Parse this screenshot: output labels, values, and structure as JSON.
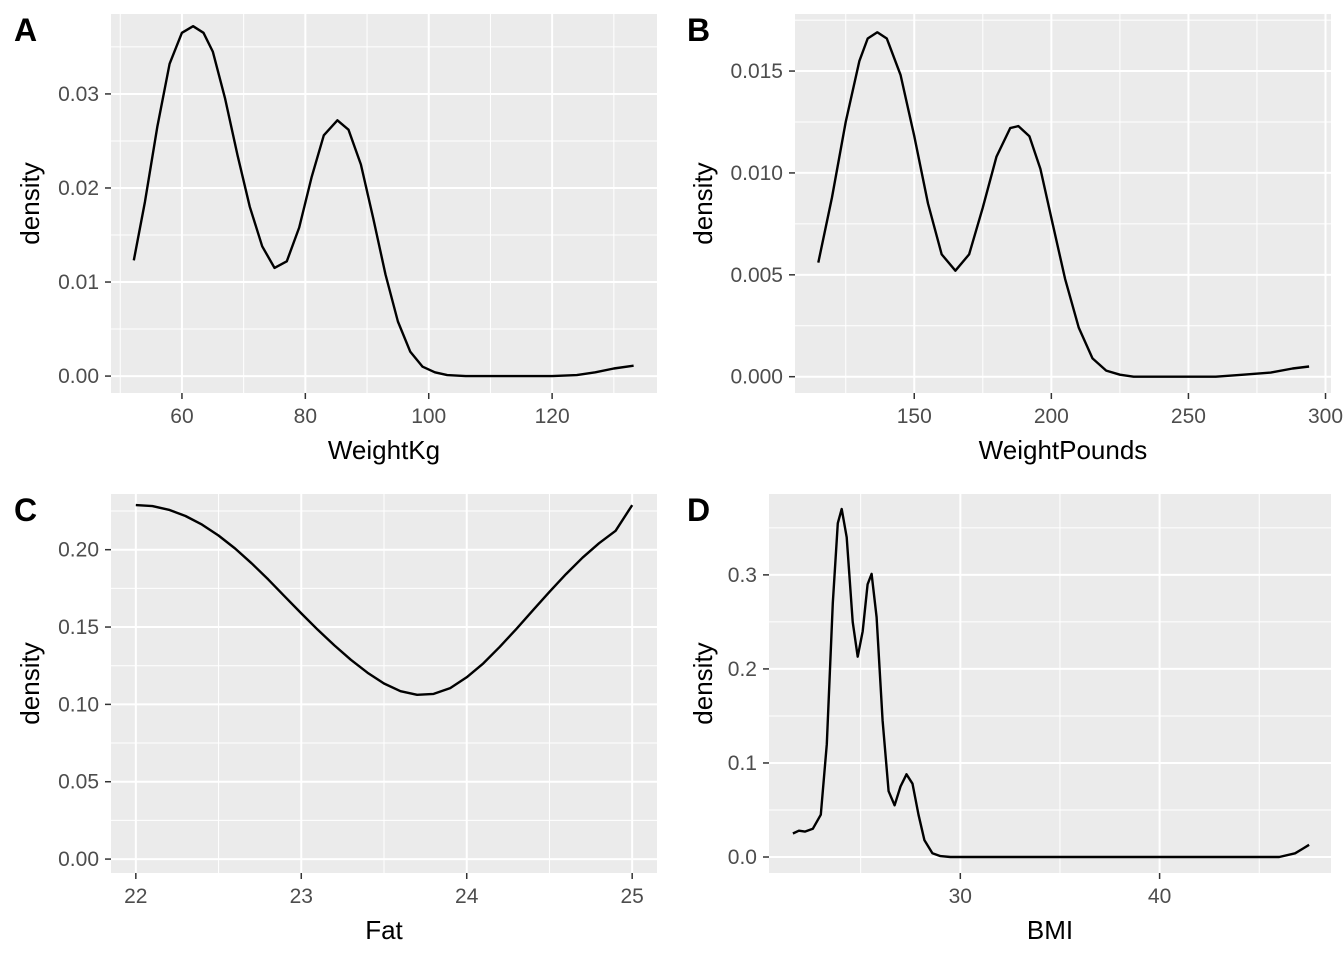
{
  "chart_data": [
    {
      "panel": "A",
      "type": "line",
      "xlabel": "WeightKg",
      "ylabel": "density",
      "xlim": [
        48.5,
        137
      ],
      "ylim": [
        -0.0018,
        0.0385
      ],
      "x_ticks": [
        60,
        80,
        100,
        120
      ],
      "x_tick_labels": [
        "60",
        "80",
        "100",
        "120"
      ],
      "y_ticks": [
        0,
        0.01,
        0.02,
        0.03
      ],
      "y_tick_labels": [
        "0.00",
        "0.01",
        "0.02",
        "0.03"
      ],
      "grid": true,
      "series": [
        {
          "x": [
            52.2,
            54,
            56,
            58,
            60,
            61.8,
            63.5,
            65,
            67,
            69,
            71,
            73,
            75,
            77,
            79,
            81,
            83,
            85.2,
            87,
            89,
            91,
            93,
            95,
            97,
            99,
            101,
            103,
            106,
            110,
            115,
            120,
            124,
            127,
            130,
            133.2
          ],
          "y": [
            0.0123,
            0.0185,
            0.0265,
            0.0332,
            0.0365,
            0.0372,
            0.0365,
            0.0345,
            0.0295,
            0.0235,
            0.018,
            0.0138,
            0.0115,
            0.0122,
            0.0158,
            0.0211,
            0.0256,
            0.0272,
            0.0262,
            0.0225,
            0.0168,
            0.0108,
            0.0058,
            0.0026,
            0.001,
            0.0004,
            0.0001,
            0.0,
            0.0,
            0.0,
            0.0,
            0.0001,
            0.0004,
            0.0008,
            0.0011
          ]
        }
      ]
    },
    {
      "panel": "B",
      "type": "line",
      "xlabel": "WeightPounds",
      "ylabel": "density",
      "xlim": [
        106.5,
        302
      ],
      "ylim": [
        -0.0008,
        0.0178
      ],
      "x_ticks": [
        150,
        200,
        250,
        300
      ],
      "x_tick_labels": [
        "150",
        "200",
        "250",
        "300"
      ],
      "y_ticks": [
        0,
        0.005,
        0.01,
        0.015
      ],
      "y_tick_labels": [
        "0.000",
        "0.005",
        "0.010",
        "0.015"
      ],
      "grid": true,
      "series": [
        {
          "x": [
            115,
            120,
            125,
            130,
            133,
            136.5,
            140,
            145,
            150,
            155,
            160,
            165,
            170,
            175,
            180,
            185,
            188,
            192,
            196,
            200,
            205,
            210,
            215,
            220,
            225,
            230,
            240,
            250,
            260,
            270,
            280,
            288,
            294
          ],
          "y": [
            0.0056,
            0.0088,
            0.0125,
            0.0155,
            0.0166,
            0.0169,
            0.0166,
            0.0148,
            0.0118,
            0.0085,
            0.006,
            0.0052,
            0.006,
            0.0083,
            0.0108,
            0.0122,
            0.0123,
            0.0118,
            0.0102,
            0.0078,
            0.0048,
            0.0024,
            0.0009,
            0.0003,
            0.0001,
            0.0,
            0.0,
            0.0,
            0.0,
            0.0001,
            0.0002,
            0.0004,
            0.0005
          ]
        }
      ]
    },
    {
      "panel": "C",
      "type": "line",
      "xlabel": "Fat",
      "ylabel": "density",
      "xlim": [
        21.85,
        25.15
      ],
      "ylim": [
        -0.009,
        0.236
      ],
      "x_ticks": [
        22,
        23,
        24,
        25
      ],
      "x_tick_labels": [
        "22",
        "23",
        "24",
        "25"
      ],
      "y_ticks": [
        0,
        0.05,
        0.1,
        0.15,
        0.2
      ],
      "y_tick_labels": [
        "0.00",
        "0.05",
        "0.10",
        "0.15",
        "0.20"
      ],
      "grid": true,
      "series": [
        {
          "x": [
            22.0,
            22.1,
            22.2,
            22.3,
            22.4,
            22.5,
            22.6,
            22.7,
            22.8,
            22.9,
            23.0,
            23.1,
            23.2,
            23.3,
            23.4,
            23.5,
            23.6,
            23.7,
            23.8,
            23.9,
            24.0,
            24.1,
            24.2,
            24.3,
            24.4,
            24.5,
            24.6,
            24.7,
            24.8,
            24.9,
            25.0
          ],
          "y": [
            0.2288,
            0.2282,
            0.2258,
            0.2218,
            0.2162,
            0.2092,
            0.2008,
            0.1912,
            0.1808,
            0.1698,
            0.1588,
            0.1482,
            0.1381,
            0.1288,
            0.1205,
            0.1135,
            0.1085,
            0.1062,
            0.1068,
            0.1105,
            0.1175,
            0.1265,
            0.1372,
            0.1488,
            0.1608,
            0.1728,
            0.1842,
            0.1948,
            0.2042,
            0.2122,
            0.2288
          ]
        }
      ]
    },
    {
      "panel": "D",
      "type": "line",
      "xlabel": "BMI",
      "ylabel": "density",
      "xlim": [
        20.4,
        48.6
      ],
      "ylim": [
        -0.017,
        0.386
      ],
      "x_ticks": [
        30,
        40
      ],
      "x_tick_labels": [
        "30",
        "40"
      ],
      "y_ticks": [
        0,
        0.1,
        0.2,
        0.3
      ],
      "y_tick_labels": [
        "0.0",
        "0.1",
        "0.2",
        "0.3"
      ],
      "grid": true,
      "series": [
        {
          "x": [
            21.6,
            21.9,
            22.2,
            22.6,
            23.0,
            23.3,
            23.6,
            23.85,
            24.05,
            24.3,
            24.6,
            24.85,
            25.1,
            25.35,
            25.55,
            25.8,
            26.1,
            26.4,
            26.7,
            27.0,
            27.3,
            27.6,
            27.9,
            28.2,
            28.6,
            29.0,
            29.5,
            30,
            32,
            35,
            38,
            41,
            44,
            46,
            46.8,
            47.2,
            47.5
          ],
          "y": [
            0.025,
            0.028,
            0.027,
            0.03,
            0.045,
            0.12,
            0.27,
            0.355,
            0.37,
            0.34,
            0.25,
            0.213,
            0.24,
            0.29,
            0.301,
            0.255,
            0.145,
            0.07,
            0.055,
            0.075,
            0.088,
            0.078,
            0.045,
            0.018,
            0.004,
            0.001,
            0.0,
            0.0,
            0.0,
            0.0,
            0.0,
            0.0,
            0.0,
            0.0,
            0.004,
            0.009,
            0.013
          ]
        }
      ]
    }
  ]
}
